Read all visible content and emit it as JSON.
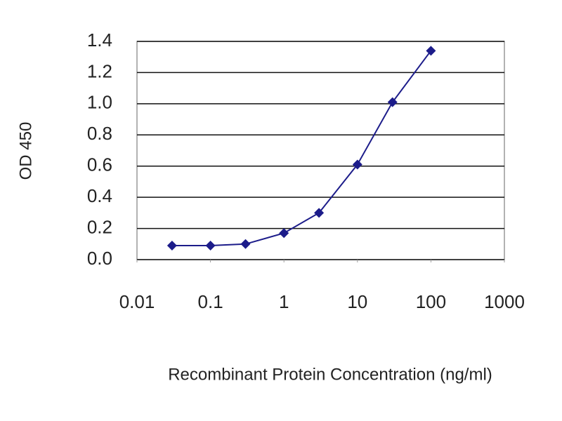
{
  "chart_data": {
    "type": "line",
    "y_label": "OD 450",
    "x_label": "Recombinant Protein Concentration (ng/ml)",
    "x": [
      0.03,
      0.1,
      0.3,
      1,
      3,
      10,
      30,
      100
    ],
    "values": [
      0.09,
      0.09,
      0.1,
      0.17,
      0.3,
      0.61,
      1.01,
      1.34
    ],
    "color": "#1c1c8a",
    "marker": "diamond",
    "xscale": "log",
    "xlim": [
      0.01,
      1000
    ],
    "xticks": [
      0.01,
      0.1,
      1,
      10,
      100,
      1000
    ],
    "ylim": [
      0,
      1.4
    ],
    "yticks": [
      {
        "value": 0,
        "label": "0.0"
      },
      {
        "value": 0.2,
        "label": "0.2"
      },
      {
        "value": 0.4,
        "label": "0.4"
      },
      {
        "value": 0.6,
        "label": "0.6"
      },
      {
        "value": 0.8,
        "label": "0.8"
      },
      {
        "value": 1,
        "label": "1.0"
      },
      {
        "value": 1.2,
        "label": "1.2"
      },
      {
        "value": 1.4,
        "label": "1.4"
      }
    ],
    "grid": true
  }
}
